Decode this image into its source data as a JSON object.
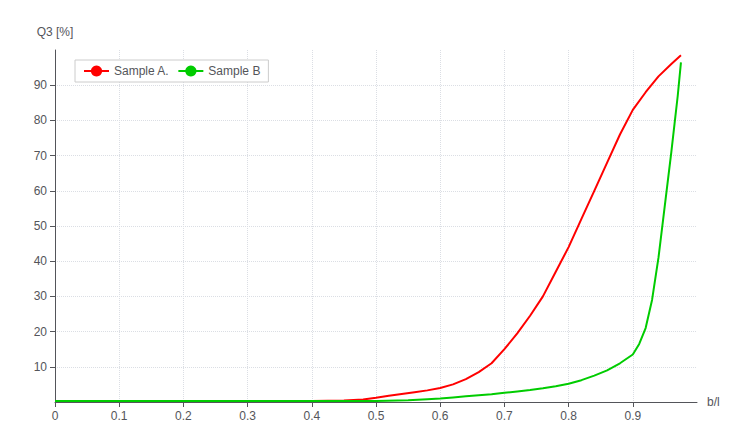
{
  "chart_data": {
    "type": "line",
    "ylabel": "Q3 [%]",
    "xlabel": "b/l",
    "xlim": [
      0,
      1.0
    ],
    "ylim": [
      0,
      100
    ],
    "xticks": [
      0,
      0.1,
      0.2,
      0.3,
      0.4,
      0.5,
      0.6,
      0.7,
      0.8,
      0.9
    ],
    "yticks": [
      10,
      20,
      30,
      40,
      50,
      60,
      70,
      80,
      90
    ],
    "grid": true,
    "legend": "upper left",
    "series": [
      {
        "name": "Sample A.",
        "color": "#ff0000",
        "x": [
          0.0,
          0.1,
          0.2,
          0.3,
          0.4,
          0.45,
          0.48,
          0.5,
          0.52,
          0.54,
          0.56,
          0.58,
          0.6,
          0.62,
          0.64,
          0.66,
          0.68,
          0.7,
          0.72,
          0.74,
          0.76,
          0.78,
          0.8,
          0.82,
          0.84,
          0.86,
          0.88,
          0.9,
          0.92,
          0.94,
          0.96,
          0.975
        ],
        "values": [
          0.3,
          0.3,
          0.3,
          0.3,
          0.3,
          0.4,
          0.7,
          1.2,
          1.8,
          2.3,
          2.8,
          3.3,
          4.0,
          5.0,
          6.5,
          8.5,
          11.0,
          15.0,
          19.5,
          24.5,
          30.0,
          37.0,
          44.0,
          52.0,
          60.0,
          68.0,
          76.0,
          83.0,
          88.0,
          92.5,
          96.0,
          98.5
        ]
      },
      {
        "name": "Sample B",
        "color": "#00cc00",
        "x": [
          0.0,
          0.1,
          0.2,
          0.3,
          0.4,
          0.5,
          0.55,
          0.58,
          0.6,
          0.62,
          0.64,
          0.66,
          0.68,
          0.7,
          0.72,
          0.74,
          0.76,
          0.78,
          0.8,
          0.82,
          0.84,
          0.86,
          0.88,
          0.9,
          0.91,
          0.92,
          0.93,
          0.94,
          0.95,
          0.96,
          0.965,
          0.97,
          0.975
        ],
        "values": [
          0.3,
          0.3,
          0.3,
          0.3,
          0.3,
          0.3,
          0.5,
          0.8,
          1.0,
          1.3,
          1.6,
          1.9,
          2.2,
          2.6,
          3.0,
          3.4,
          3.9,
          4.5,
          5.2,
          6.2,
          7.5,
          9.0,
          11.0,
          13.5,
          16.5,
          21.0,
          29.0,
          41.0,
          56.0,
          71.0,
          79.0,
          87.0,
          96.5
        ]
      }
    ]
  }
}
